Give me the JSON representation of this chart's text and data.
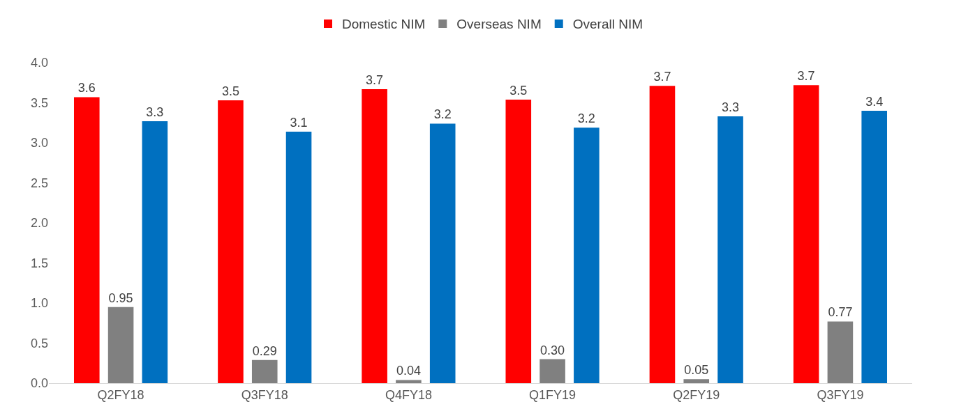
{
  "chart_data": {
    "type": "bar",
    "categories": [
      "Q2FY18",
      "Q3FY18",
      "Q4FY18",
      "Q1FY19",
      "Q2FY19",
      "Q3FY19"
    ],
    "series": [
      {
        "name": "Domestic NIM",
        "color": "#ff0000",
        "values": [
          3.57,
          3.53,
          3.67,
          3.54,
          3.71,
          3.72
        ],
        "value_labels": [
          "3.6",
          "3.5",
          "3.7",
          "3.5",
          "3.7",
          "3.7"
        ]
      },
      {
        "name": "Overseas NIM",
        "color": "#808080",
        "values": [
          0.95,
          0.29,
          0.04,
          0.3,
          0.05,
          0.77
        ],
        "value_labels": [
          "0.95",
          "0.29",
          "0.04",
          "0.30",
          "0.05",
          "0.77"
        ]
      },
      {
        "name": "Overall NIM",
        "color": "#0070c0",
        "values": [
          3.27,
          3.14,
          3.24,
          3.19,
          3.33,
          3.4
        ],
        "value_labels": [
          "3.3",
          "3.1",
          "3.2",
          "3.2",
          "3.3",
          "3.4"
        ]
      }
    ],
    "ylim": [
      0,
      4.0
    ],
    "yticks": [
      {
        "value": 0,
        "label": "0.0"
      },
      {
        "value": 0.5,
        "label": "0.5"
      },
      {
        "value": 1,
        "label": "1.0"
      },
      {
        "value": 1.5,
        "label": "1.5"
      },
      {
        "value": 2,
        "label": "2.0"
      },
      {
        "value": 2.5,
        "label": "2.5"
      },
      {
        "value": 3,
        "label": "3.0"
      },
      {
        "value": 3.5,
        "label": "3.5"
      },
      {
        "value": 4,
        "label": "4.0"
      }
    ],
    "grid": false,
    "legend": "top"
  }
}
